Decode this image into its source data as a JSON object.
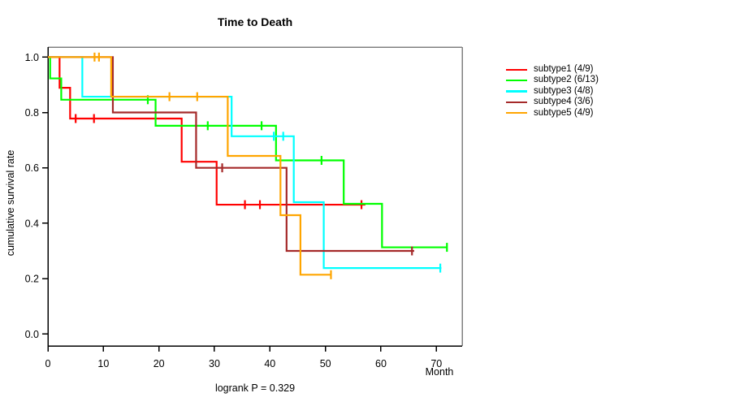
{
  "chart_data": {
    "type": "line",
    "variant": "kaplan-meier-step-survival",
    "title": "Time to Death",
    "xlabel": "Month",
    "ylabel": "cumulative survival rate",
    "annotation": "logrank P = 0.329",
    "xlim": [
      0,
      74.6
    ],
    "ylim": [
      0,
      1.04
    ],
    "x_ticks": [
      0,
      10,
      20,
      30,
      40,
      50,
      60,
      70
    ],
    "y_ticks": [
      0,
      0.2,
      0.4,
      0.6,
      0.8,
      1
    ],
    "grid": false,
    "legend_position": "right-outside",
    "box_color": "#808080",
    "axis_color": "#000000",
    "series": [
      {
        "name": "subtype1",
        "label": "subtype1 (4/9)",
        "color": "#FF0000",
        "steps": [
          [
            2.1,
            0.889
          ],
          [
            4.0,
            0.778
          ],
          [
            24.1,
            0.622
          ],
          [
            30.4,
            0.467
          ]
        ],
        "end": 57.2,
        "censors": [
          [
            5.0,
            0.778
          ],
          [
            8.3,
            0.778
          ],
          [
            35.5,
            0.467
          ],
          [
            38.2,
            0.467
          ],
          [
            56.5,
            0.467
          ]
        ]
      },
      {
        "name": "subtype2",
        "label": "subtype2 (6/13)",
        "color": "#00FF00",
        "steps": [
          [
            0.4,
            0.923
          ],
          [
            2.4,
            0.846
          ],
          [
            19.4,
            0.752
          ],
          [
            41.1,
            0.627
          ],
          [
            53.3,
            0.47
          ],
          [
            60.2,
            0.313
          ]
        ],
        "end": 71.9,
        "censors": [
          [
            18.0,
            0.846
          ],
          [
            28.8,
            0.752
          ],
          [
            38.5,
            0.752
          ],
          [
            49.3,
            0.627
          ],
          [
            71.9,
            0.313
          ]
        ]
      },
      {
        "name": "subtype3",
        "label": "subtype3 (4/8)",
        "color": "#00FFFF",
        "steps": [
          [
            6.2,
            0.857
          ],
          [
            33.1,
            0.714
          ],
          [
            44.3,
            0.476
          ],
          [
            49.7,
            0.238
          ]
        ],
        "end": 70.9,
        "censors": [
          [
            40.7,
            0.714
          ],
          [
            42.4,
            0.714
          ],
          [
            70.7,
            0.238
          ]
        ]
      },
      {
        "name": "subtype4",
        "label": "subtype4 (3/6)",
        "color": "#A52A2A",
        "steps": [
          [
            11.7,
            0.8
          ],
          [
            26.7,
            0.6
          ],
          [
            43.0,
            0.3
          ]
        ],
        "end": 66.0,
        "censors": [
          [
            31.4,
            0.6
          ],
          [
            65.6,
            0.3
          ]
        ]
      },
      {
        "name": "subtype5",
        "label": "subtype5 (4/9)",
        "color": "#FFA500",
        "steps": [
          [
            11.4,
            0.857
          ],
          [
            32.4,
            0.643
          ],
          [
            41.9,
            0.429
          ],
          [
            45.5,
            0.214
          ]
        ],
        "end": 51.1,
        "censors": [
          [
            8.4,
            1.0
          ],
          [
            9.2,
            1.0
          ],
          [
            21.9,
            0.857
          ],
          [
            26.9,
            0.857
          ],
          [
            51.0,
            0.214
          ]
        ]
      }
    ]
  }
}
